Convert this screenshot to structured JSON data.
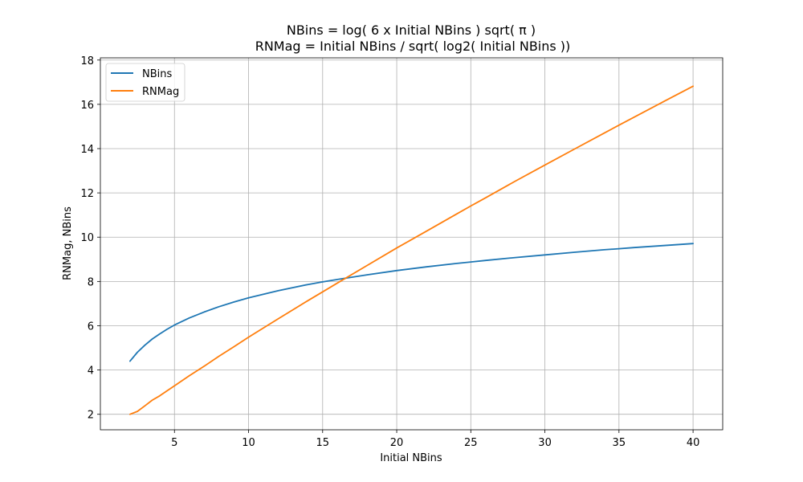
{
  "chart_data": {
    "type": "line",
    "title_lines": [
      "NBins  =  log( 6 x Initial NBins ) sqrt( π )",
      "RNMag = Initial NBins / sqrt( log2( Initial NBins ))"
    ],
    "xlabel": "Initial NBins",
    "ylabel": "RNMag, NBins",
    "xlim": [
      0,
      42
    ],
    "ylim": [
      1.3,
      18.1
    ],
    "x_ticks": [
      5,
      10,
      15,
      20,
      25,
      30,
      35,
      40
    ],
    "y_ticks": [
      2,
      4,
      6,
      8,
      10,
      12,
      14,
      16,
      18
    ],
    "grid": true,
    "legend_position": "top-left",
    "series": [
      {
        "name": "NBins",
        "color": "#1f77b4",
        "x": [
          2,
          2.5,
          3,
          3.5,
          4,
          4.5,
          5,
          6,
          7,
          8,
          9,
          10,
          12,
          14,
          15,
          16,
          18,
          20,
          22,
          24,
          25,
          26,
          28,
          30,
          32,
          34,
          35,
          36,
          38,
          40
        ],
        "y": [
          4.4,
          4.8,
          5.12,
          5.4,
          5.63,
          5.84,
          6.03,
          6.35,
          6.62,
          6.86,
          7.07,
          7.26,
          7.58,
          7.86,
          7.98,
          8.09,
          8.3,
          8.49,
          8.66,
          8.81,
          8.88,
          8.95,
          9.08,
          9.2,
          9.32,
          9.43,
          9.48,
          9.53,
          9.62,
          9.71
        ]
      },
      {
        "name": "RNMag",
        "color": "#ff7f0e",
        "x": [
          2,
          2.5,
          3,
          3.5,
          4,
          4.5,
          5,
          6,
          7,
          8,
          9,
          10,
          12,
          14,
          15,
          16,
          18,
          20,
          22,
          24,
          25,
          26,
          28,
          30,
          32,
          34,
          35,
          36,
          38,
          40
        ],
        "y": [
          2.0,
          2.13,
          2.38,
          2.64,
          2.83,
          3.06,
          3.29,
          3.74,
          4.17,
          4.62,
          5.05,
          5.48,
          6.31,
          7.13,
          7.53,
          7.93,
          8.72,
          9.51,
          10.27,
          11.03,
          11.41,
          11.78,
          12.53,
          13.26,
          13.98,
          14.7,
          15.06,
          15.41,
          16.12,
          16.82
        ]
      }
    ]
  }
}
